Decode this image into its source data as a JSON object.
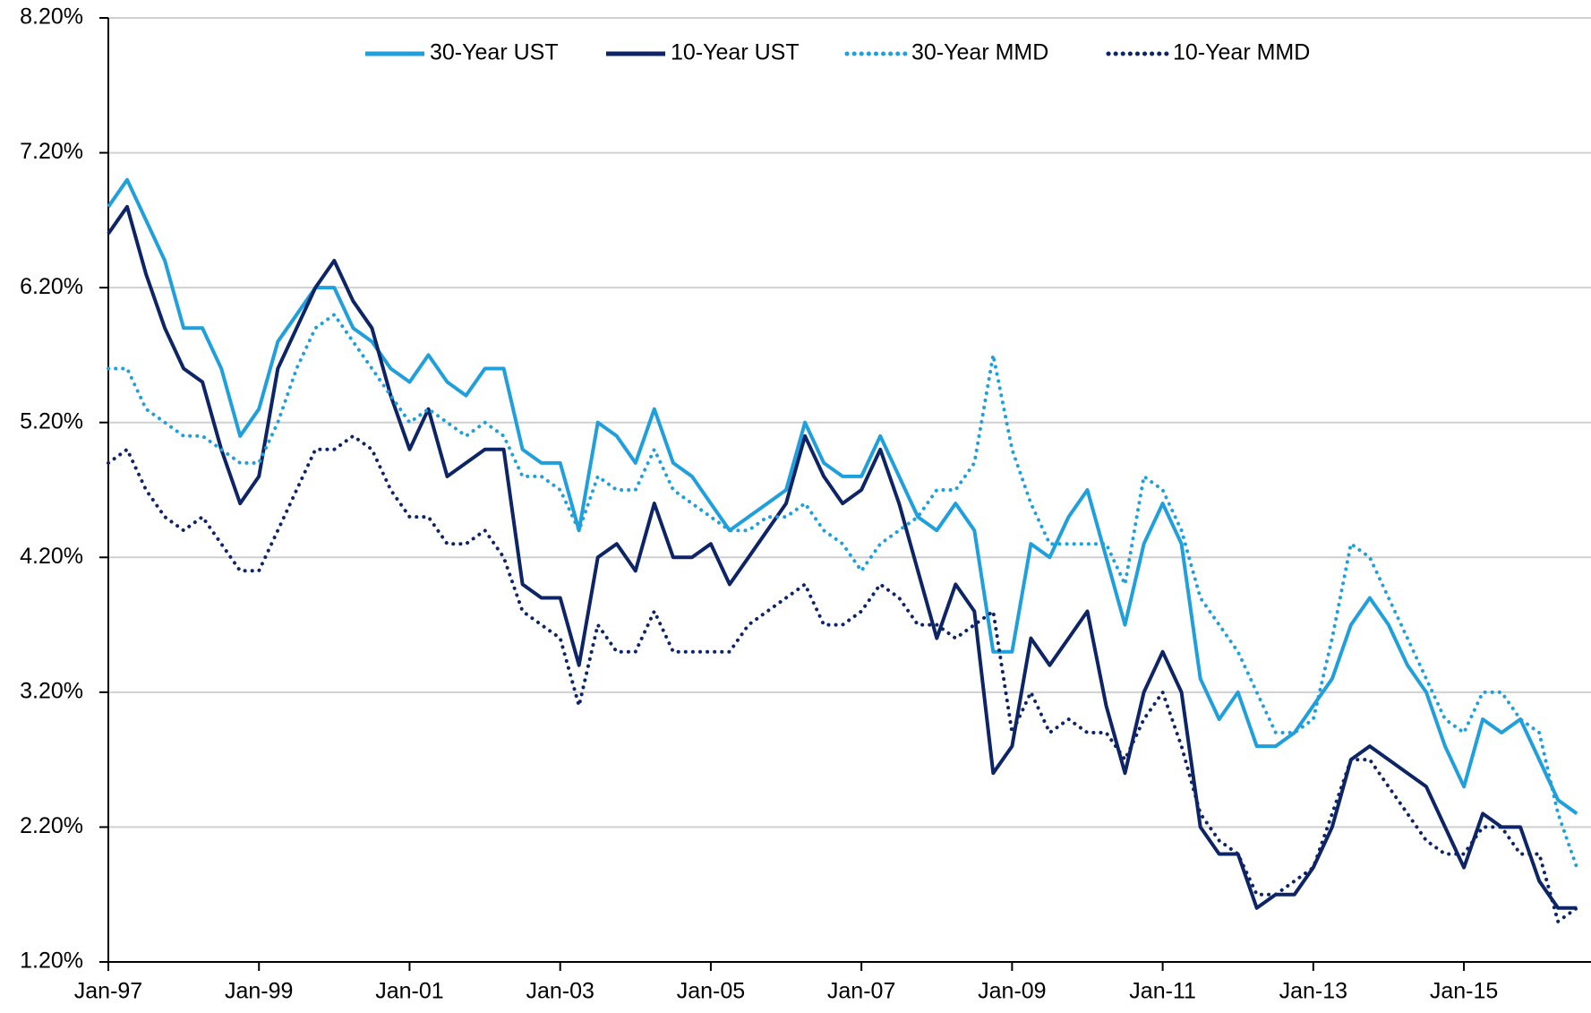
{
  "chart_data": {
    "type": "line",
    "categories": [
      "Jan-97",
      null,
      null,
      null,
      null,
      null,
      null,
      null,
      "Jan-99",
      null,
      null,
      null,
      null,
      null,
      null,
      null,
      "Jan-01",
      null,
      null,
      null,
      null,
      null,
      null,
      null,
      "Jan-03",
      null,
      null,
      null,
      null,
      null,
      null,
      null,
      "Jan-05",
      null,
      null,
      null,
      null,
      null,
      null,
      null,
      "Jan-07",
      null,
      null,
      null,
      null,
      null,
      null,
      null,
      "Jan-09",
      null,
      null,
      null,
      null,
      null,
      null,
      null,
      "Jan-11",
      null,
      null,
      null,
      null,
      null,
      null,
      null,
      "Jan-13",
      null,
      null,
      null,
      null,
      null,
      null,
      null,
      "Jan-15",
      null,
      null,
      null,
      null,
      null,
      null
    ],
    "series": [
      {
        "name": "30-Year UST",
        "color": "#1f9fdb",
        "style": "solid",
        "values": [
          6.8,
          7.0,
          6.7,
          6.4,
          5.9,
          5.9,
          5.6,
          5.1,
          5.3,
          5.8,
          6.0,
          6.2,
          6.2,
          5.9,
          5.8,
          5.6,
          5.5,
          5.7,
          5.5,
          5.4,
          5.6,
          5.6,
          5.0,
          4.9,
          4.9,
          4.4,
          5.2,
          5.1,
          4.9,
          5.3,
          4.9,
          4.8,
          4.6,
          4.4,
          4.5,
          4.6,
          4.7,
          5.2,
          4.9,
          4.8,
          4.8,
          5.1,
          4.8,
          4.5,
          4.4,
          4.6,
          4.4,
          3.5,
          3.5,
          4.3,
          4.2,
          4.5,
          4.7,
          4.2,
          3.7,
          4.3,
          4.6,
          4.3,
          3.3,
          3.0,
          3.2,
          2.8,
          2.8,
          2.9,
          3.1,
          3.3,
          3.7,
          3.9,
          3.7,
          3.4,
          3.2,
          2.8,
          2.5,
          3.0,
          2.9,
          3.0,
          2.7,
          2.4,
          2.3
        ]
      },
      {
        "name": "10-Year UST",
        "color": "#0d2466",
        "style": "solid",
        "values": [
          6.6,
          6.8,
          6.3,
          5.9,
          5.6,
          5.5,
          5.0,
          4.6,
          4.8,
          5.6,
          5.9,
          6.2,
          6.4,
          6.1,
          5.9,
          5.4,
          5.0,
          5.3,
          4.8,
          4.9,
          5.0,
          5.0,
          4.0,
          3.9,
          3.9,
          3.4,
          4.2,
          4.3,
          4.1,
          4.6,
          4.2,
          4.2,
          4.3,
          4.0,
          4.2,
          4.4,
          4.6,
          5.1,
          4.8,
          4.6,
          4.7,
          5.0,
          4.6,
          4.1,
          3.6,
          4.0,
          3.8,
          2.6,
          2.8,
          3.6,
          3.4,
          3.6,
          3.8,
          3.1,
          2.6,
          3.2,
          3.5,
          3.2,
          2.2,
          2.0,
          2.0,
          1.6,
          1.7,
          1.7,
          1.9,
          2.2,
          2.7,
          2.8,
          2.7,
          2.6,
          2.5,
          2.2,
          1.9,
          2.3,
          2.2,
          2.2,
          1.8,
          1.6,
          1.6
        ]
      },
      {
        "name": "30-Year MMD",
        "color": "#1f9fdb",
        "style": "dotted",
        "values": [
          5.6,
          5.6,
          5.3,
          5.2,
          5.1,
          5.1,
          5.0,
          4.9,
          4.9,
          5.2,
          5.6,
          5.9,
          6.0,
          5.8,
          5.6,
          5.4,
          5.2,
          5.3,
          5.2,
          5.1,
          5.2,
          5.1,
          4.8,
          4.8,
          4.7,
          4.4,
          4.8,
          4.7,
          4.7,
          5.0,
          4.7,
          4.6,
          4.5,
          4.4,
          4.4,
          4.5,
          4.5,
          4.6,
          4.4,
          4.3,
          4.1,
          4.3,
          4.4,
          4.5,
          4.7,
          4.7,
          4.9,
          5.7,
          5.0,
          4.6,
          4.3,
          4.3,
          4.3,
          4.3,
          4.0,
          4.8,
          4.7,
          4.4,
          3.9,
          3.7,
          3.5,
          3.2,
          2.9,
          2.9,
          3.0,
          3.6,
          4.3,
          4.2,
          3.9,
          3.6,
          3.3,
          3.0,
          2.9,
          3.2,
          3.2,
          3.0,
          2.9,
          2.3,
          1.9
        ]
      },
      {
        "name": "10-Year MMD",
        "color": "#0d2466",
        "style": "dotted",
        "values": [
          4.9,
          5.0,
          4.7,
          4.5,
          4.4,
          4.5,
          4.3,
          4.1,
          4.1,
          4.4,
          4.7,
          5.0,
          5.0,
          5.1,
          5.0,
          4.7,
          4.5,
          4.5,
          4.3,
          4.3,
          4.4,
          4.2,
          3.8,
          3.7,
          3.6,
          3.1,
          3.7,
          3.5,
          3.5,
          3.8,
          3.5,
          3.5,
          3.5,
          3.5,
          3.7,
          3.8,
          3.9,
          4.0,
          3.7,
          3.7,
          3.8,
          4.0,
          3.9,
          3.7,
          3.7,
          3.6,
          3.7,
          3.8,
          2.9,
          3.2,
          2.9,
          3.0,
          2.9,
          2.9,
          2.7,
          3.0,
          3.2,
          2.8,
          2.3,
          2.1,
          2.0,
          1.7,
          1.7,
          1.8,
          1.9,
          2.3,
          2.7,
          2.7,
          2.5,
          2.3,
          2.1,
          2.0,
          2.0,
          2.2,
          2.2,
          2.0,
          2.0,
          1.5,
          1.6
        ]
      }
    ],
    "ylim": [
      1.2,
      8.2
    ],
    "yticks": [
      {
        "value": 1.2,
        "label": "1.20%"
      },
      {
        "value": 2.2,
        "label": "2.20%"
      },
      {
        "value": 3.2,
        "label": "3.20%"
      },
      {
        "value": 4.2,
        "label": "4.20%"
      },
      {
        "value": 5.2,
        "label": "5.20%"
      },
      {
        "value": 6.2,
        "label": "6.20%"
      },
      {
        "value": 7.2,
        "label": "7.20%"
      },
      {
        "value": 8.2,
        "label": "8.20%"
      }
    ],
    "grid": true,
    "legend": "top"
  }
}
